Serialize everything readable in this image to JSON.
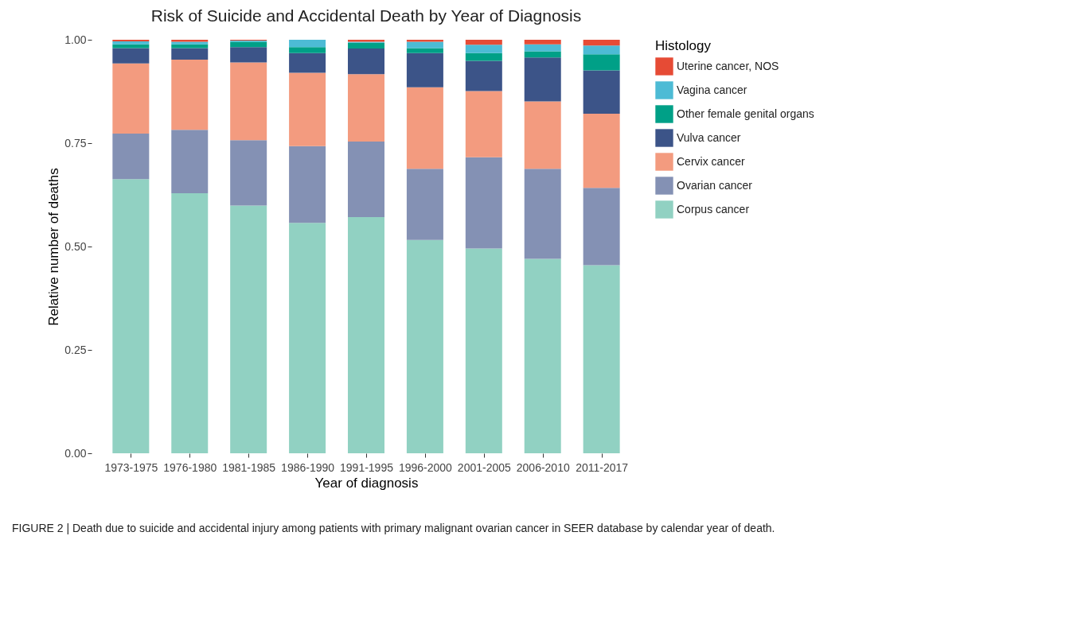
{
  "chart_data": {
    "type": "bar",
    "stacked": true,
    "title": "Risk of Suicide and Accidental Death by Year of Diagnosis",
    "xlabel": "Year of diagnosis",
    "ylabel": "Relative number of deaths",
    "legend_title": "Histology",
    "categories": [
      "1973-1975",
      "1976-1980",
      "1981-1985",
      "1986-1990",
      "1991-1995",
      "1996-2000",
      "2001-2005",
      "2006-2010",
      "2011-2017"
    ],
    "series": [
      {
        "name": "Corpus cancer",
        "color": "#91d1c2",
        "values": [
          0.663,
          0.629,
          0.599,
          0.557,
          0.571,
          0.516,
          0.495,
          0.47,
          0.455
        ]
      },
      {
        "name": "Ovarian cancer",
        "color": "#8491b4",
        "values": [
          0.11,
          0.153,
          0.158,
          0.186,
          0.183,
          0.172,
          0.221,
          0.218,
          0.187
        ]
      },
      {
        "name": "Cervix cancer",
        "color": "#f39b7f",
        "values": [
          0.17,
          0.17,
          0.188,
          0.177,
          0.163,
          0.197,
          0.16,
          0.163,
          0.179
        ]
      },
      {
        "name": "Vulva cancer",
        "color": "#3c5488",
        "values": [
          0.037,
          0.028,
          0.037,
          0.048,
          0.062,
          0.083,
          0.073,
          0.106,
          0.105
        ]
      },
      {
        "name": "Other female genital organs",
        "color": "#00a087",
        "values": [
          0.009,
          0.009,
          0.013,
          0.014,
          0.014,
          0.012,
          0.019,
          0.015,
          0.039
        ]
      },
      {
        "name": "Vagina cancer",
        "color": "#4dbbd5",
        "values": [
          0.007,
          0.006,
          0.003,
          0.018,
          0.002,
          0.015,
          0.02,
          0.017,
          0.021
        ]
      },
      {
        "name": "Uterine cancer, NOS",
        "color": "#e64b35",
        "values": [
          0.004,
          0.005,
          0.002,
          null,
          0.005,
          0.005,
          0.012,
          0.011,
          0.014
        ]
      }
    ],
    "ylim": [
      0,
      1
    ],
    "yticks": [
      {
        "value": 0,
        "label": "0.00"
      },
      {
        "value": 0.25,
        "label": "0.25"
      },
      {
        "value": 0.5,
        "label": "0.50"
      },
      {
        "value": 0.75,
        "label": "0.75"
      },
      {
        "value": 1,
        "label": "1.00"
      }
    ],
    "grid": false,
    "legend": "right",
    "annotations": [
      "FIGURE 2 | Death due to suicide and accidental injury among patients with primary malignant ovarian cancer in SEER database by calendar year of death."
    ]
  }
}
